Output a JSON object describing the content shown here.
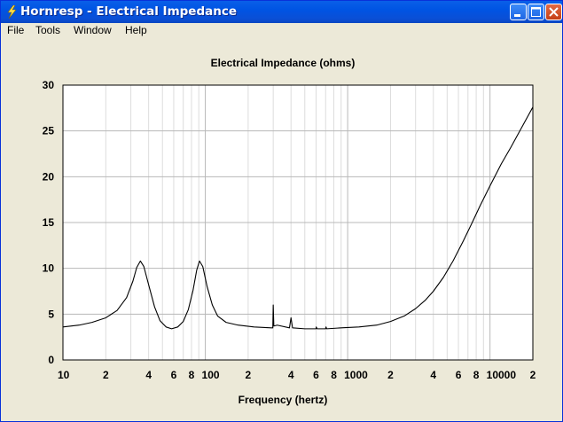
{
  "window": {
    "title": "Hornresp - Electrical Impedance"
  },
  "menu": {
    "items": [
      "File",
      "Tools",
      "Window",
      "Help"
    ]
  },
  "chart_data": {
    "type": "line",
    "title": "Electrical Impedance (ohms)",
    "xlabel": "Frequency (hertz)",
    "ylabel": "",
    "x_scale": "log",
    "xlim": [
      10,
      20000
    ],
    "ylim": [
      0,
      30
    ],
    "grid": true,
    "y_ticks": [
      "0",
      "5",
      "10",
      "15",
      "20",
      "25",
      "30"
    ],
    "x_ticks": [
      {
        "f": 10,
        "label": "10"
      },
      {
        "f": 20,
        "label": "2"
      },
      {
        "f": 40,
        "label": "4"
      },
      {
        "f": 60,
        "label": "6"
      },
      {
        "f": 80,
        "label": "8"
      },
      {
        "f": 100,
        "label": "100"
      },
      {
        "f": 200,
        "label": "2"
      },
      {
        "f": 400,
        "label": "4"
      },
      {
        "f": 600,
        "label": "6"
      },
      {
        "f": 800,
        "label": "8"
      },
      {
        "f": 1000,
        "label": "1000"
      },
      {
        "f": 2000,
        "label": "2"
      },
      {
        "f": 4000,
        "label": "4"
      },
      {
        "f": 6000,
        "label": "6"
      },
      {
        "f": 8000,
        "label": "8"
      },
      {
        "f": 10000,
        "label": "10000"
      },
      {
        "f": 20000,
        "label": "2"
      }
    ],
    "series": [
      {
        "color": "#000000",
        "points": [
          [
            10,
            3.6
          ],
          [
            13,
            3.8
          ],
          [
            16,
            4.1
          ],
          [
            20,
            4.6
          ],
          [
            24,
            5.4
          ],
          [
            28,
            6.8
          ],
          [
            31,
            8.6
          ],
          [
            33,
            10.1
          ],
          [
            35,
            10.8
          ],
          [
            37,
            10.2
          ],
          [
            40,
            8.2
          ],
          [
            44,
            5.8
          ],
          [
            48,
            4.3
          ],
          [
            53,
            3.6
          ],
          [
            58,
            3.4
          ],
          [
            64,
            3.6
          ],
          [
            70,
            4.2
          ],
          [
            76,
            5.5
          ],
          [
            82,
            7.6
          ],
          [
            87,
            9.8
          ],
          [
            91,
            10.8
          ],
          [
            96,
            10.2
          ],
          [
            103,
            8.0
          ],
          [
            112,
            6.0
          ],
          [
            122,
            4.8
          ],
          [
            140,
            4.1
          ],
          [
            170,
            3.8
          ],
          [
            220,
            3.6
          ],
          [
            290,
            3.5
          ],
          [
            298,
            3.5
          ],
          [
            300,
            6.0
          ],
          [
            303,
            3.7
          ],
          [
            320,
            3.8
          ],
          [
            390,
            3.5
          ],
          [
            400,
            4.6
          ],
          [
            410,
            3.5
          ],
          [
            500,
            3.4
          ],
          [
            600,
            3.4
          ],
          [
            602,
            3.6
          ],
          [
            610,
            3.4
          ],
          [
            700,
            3.4
          ],
          [
            705,
            3.6
          ],
          [
            712,
            3.4
          ],
          [
            900,
            3.5
          ],
          [
            1200,
            3.6
          ],
          [
            1600,
            3.8
          ],
          [
            2000,
            4.2
          ],
          [
            2500,
            4.8
          ],
          [
            3000,
            5.6
          ],
          [
            3500,
            6.5
          ],
          [
            4000,
            7.5
          ],
          [
            4700,
            9.0
          ],
          [
            5500,
            10.8
          ],
          [
            6500,
            13.0
          ],
          [
            7500,
            15.0
          ],
          [
            8500,
            16.8
          ],
          [
            10000,
            19.0
          ],
          [
            12000,
            21.4
          ],
          [
            14000,
            23.2
          ],
          [
            17000,
            25.6
          ],
          [
            20000,
            27.6
          ]
        ]
      }
    ]
  }
}
